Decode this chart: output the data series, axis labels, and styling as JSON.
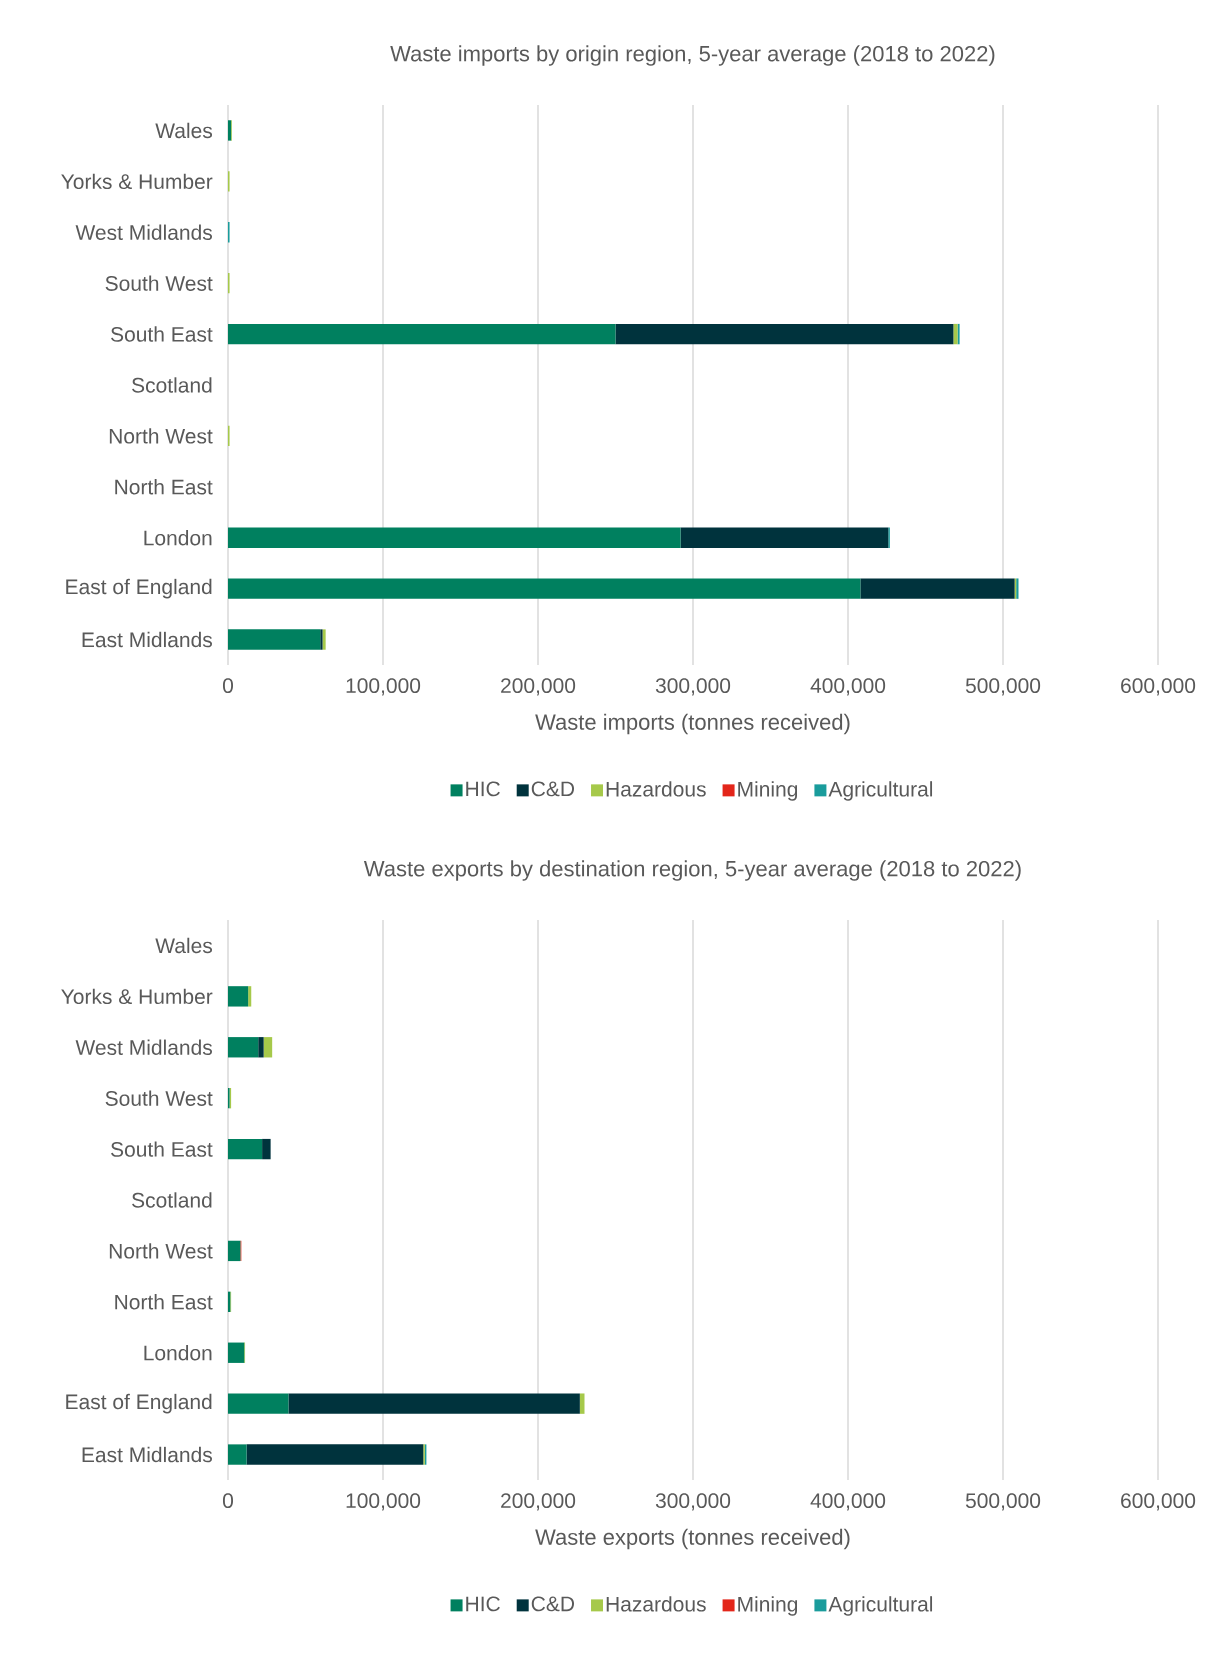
{
  "chart_data": [
    {
      "type": "bar",
      "orientation": "horizontal",
      "stacked": true,
      "title": "Waste imports by origin region, 5-year average (2018 to 2022)",
      "xlabel": "Waste imports (tonnes received)",
      "categories": [
        "Wales",
        "Yorks & Humber",
        "West Midlands",
        "South West",
        "South East",
        "Scotland",
        "North West",
        "North East",
        "London",
        "East of England",
        "East Midlands"
      ],
      "series": [
        {
          "name": "HIC",
          "color": "#00805f",
          "values": [
            2000,
            0,
            0,
            0,
            250000,
            0,
            0,
            0,
            292000,
            408000,
            59500
          ]
        },
        {
          "name": "C&D",
          "color": "#00333d",
          "values": [
            0,
            0,
            0,
            0,
            218000,
            0,
            0,
            0,
            134000,
            99500,
            1500
          ]
        },
        {
          "name": "Hazardous",
          "color": "#a6c94a",
          "values": [
            500,
            1000,
            0,
            1000,
            2700,
            0,
            1000,
            0,
            0,
            1000,
            2000
          ]
        },
        {
          "name": "Mining",
          "color": "#e3261a",
          "values": [
            0,
            0,
            0,
            0,
            0,
            0,
            0,
            0,
            0,
            0,
            0
          ]
        },
        {
          "name": "Agricultural",
          "color": "#1a9c9c",
          "values": [
            0,
            0,
            1000,
            0,
            1300,
            0,
            0,
            0,
            1000,
            1500,
            null
          ]
        }
      ],
      "xlim": [
        0,
        600000
      ],
      "xticks": [
        0,
        {
          "value": 100000,
          "label": "100,000"
        },
        {
          "value": 200000,
          "label": "200,000"
        },
        {
          "value": 300000,
          "label": "300,000"
        },
        {
          "value": 400000,
          "label": "400,000"
        },
        {
          "value": 500000,
          "label": "500,000"
        },
        {
          "value": 600000,
          "label": "600,000"
        }
      ],
      "grid": "x",
      "legend": "bottom"
    },
    {
      "type": "bar",
      "orientation": "horizontal",
      "stacked": true,
      "title": "Waste exports by destination region, 5-year average (2018 to 2022)",
      "xlabel": "Waste exports (tonnes received)",
      "categories": [
        "Wales",
        "Yorks & Humber",
        "West Midlands",
        "South West",
        "South East",
        "Scotland",
        "North West",
        "North East",
        "London",
        "East of England",
        "East Midlands"
      ],
      "series": [
        {
          "name": "HIC",
          "color": "#00805f",
          "values": [
            0,
            13000,
            19500,
            1000,
            22000,
            0,
            8000,
            1500,
            10500,
            39000,
            12000
          ]
        },
        {
          "name": "C&D",
          "color": "#00333d",
          "values": [
            0,
            0,
            3500,
            0,
            5500,
            0,
            0,
            0,
            0,
            188000,
            114000
          ]
        },
        {
          "name": "Hazardous",
          "color": "#a6c94a",
          "values": [
            0,
            2000,
            5500,
            1000,
            0,
            0,
            0,
            500,
            500,
            3000,
            1000
          ]
        },
        {
          "name": "Mining",
          "color": "#e3261a",
          "values": [
            0,
            0,
            0,
            0,
            0,
            0,
            600,
            0,
            0,
            0,
            0
          ]
        },
        {
          "name": "Agricultural",
          "color": "#1a9c9c",
          "values": [
            0,
            0,
            0,
            0,
            0,
            0,
            0,
            0,
            0,
            null,
            1000
          ]
        }
      ],
      "xlim": [
        0,
        600000
      ],
      "xticks": [
        0,
        {
          "value": 100000,
          "label": "100,000"
        },
        {
          "value": 200000,
          "label": "200,000"
        },
        {
          "value": 300000,
          "label": "300,000"
        },
        {
          "value": 400000,
          "label": "400,000"
        },
        {
          "value": 500000,
          "label": "500,000"
        },
        {
          "value": 600000,
          "label": "600,000"
        }
      ],
      "grid": "x",
      "legend": "bottom"
    }
  ]
}
